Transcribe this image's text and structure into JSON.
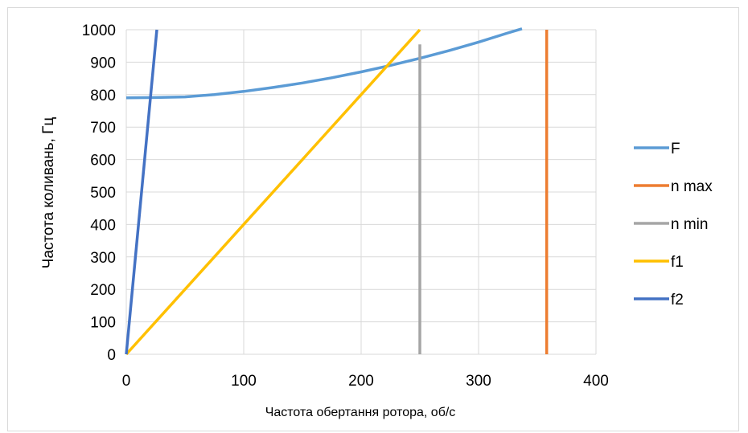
{
  "chart_data": {
    "type": "line",
    "title": "",
    "xlabel": "Частота обертання ротора, об/с",
    "ylabel": "Частота коливань, Гц",
    "xlim": [
      0,
      400
    ],
    "ylim": [
      0,
      1000
    ],
    "x_ticks": [
      0,
      100,
      200,
      300,
      400
    ],
    "y_ticks": [
      0,
      100,
      200,
      300,
      400,
      500,
      600,
      700,
      800,
      900,
      1000
    ],
    "grid": true,
    "legend_position": "right",
    "series": [
      {
        "name": "F",
        "color": "#5b9bd5",
        "x": [
          0,
          25,
          50,
          75,
          100,
          125,
          150,
          175,
          200,
          225,
          250,
          275,
          300,
          325,
          337
        ],
        "y": [
          790,
          791,
          793,
          800,
          810,
          822,
          836,
          852,
          870,
          890,
          912,
          936,
          962,
          990,
          1003
        ]
      },
      {
        "name": "n max",
        "color": "#ed7d31",
        "x": [
          358,
          358
        ],
        "y": [
          0,
          1000
        ]
      },
      {
        "name": "n min",
        "color": "#a5a5a5",
        "x": [
          250,
          250
        ],
        "y": [
          0,
          955
        ]
      },
      {
        "name": "f1",
        "color": "#ffc000",
        "x": [
          0,
          250
        ],
        "y": [
          0,
          1000
        ]
      },
      {
        "name": "f2",
        "color": "#4472c4",
        "x": [
          0,
          26
        ],
        "y": [
          0,
          1000
        ]
      }
    ]
  }
}
